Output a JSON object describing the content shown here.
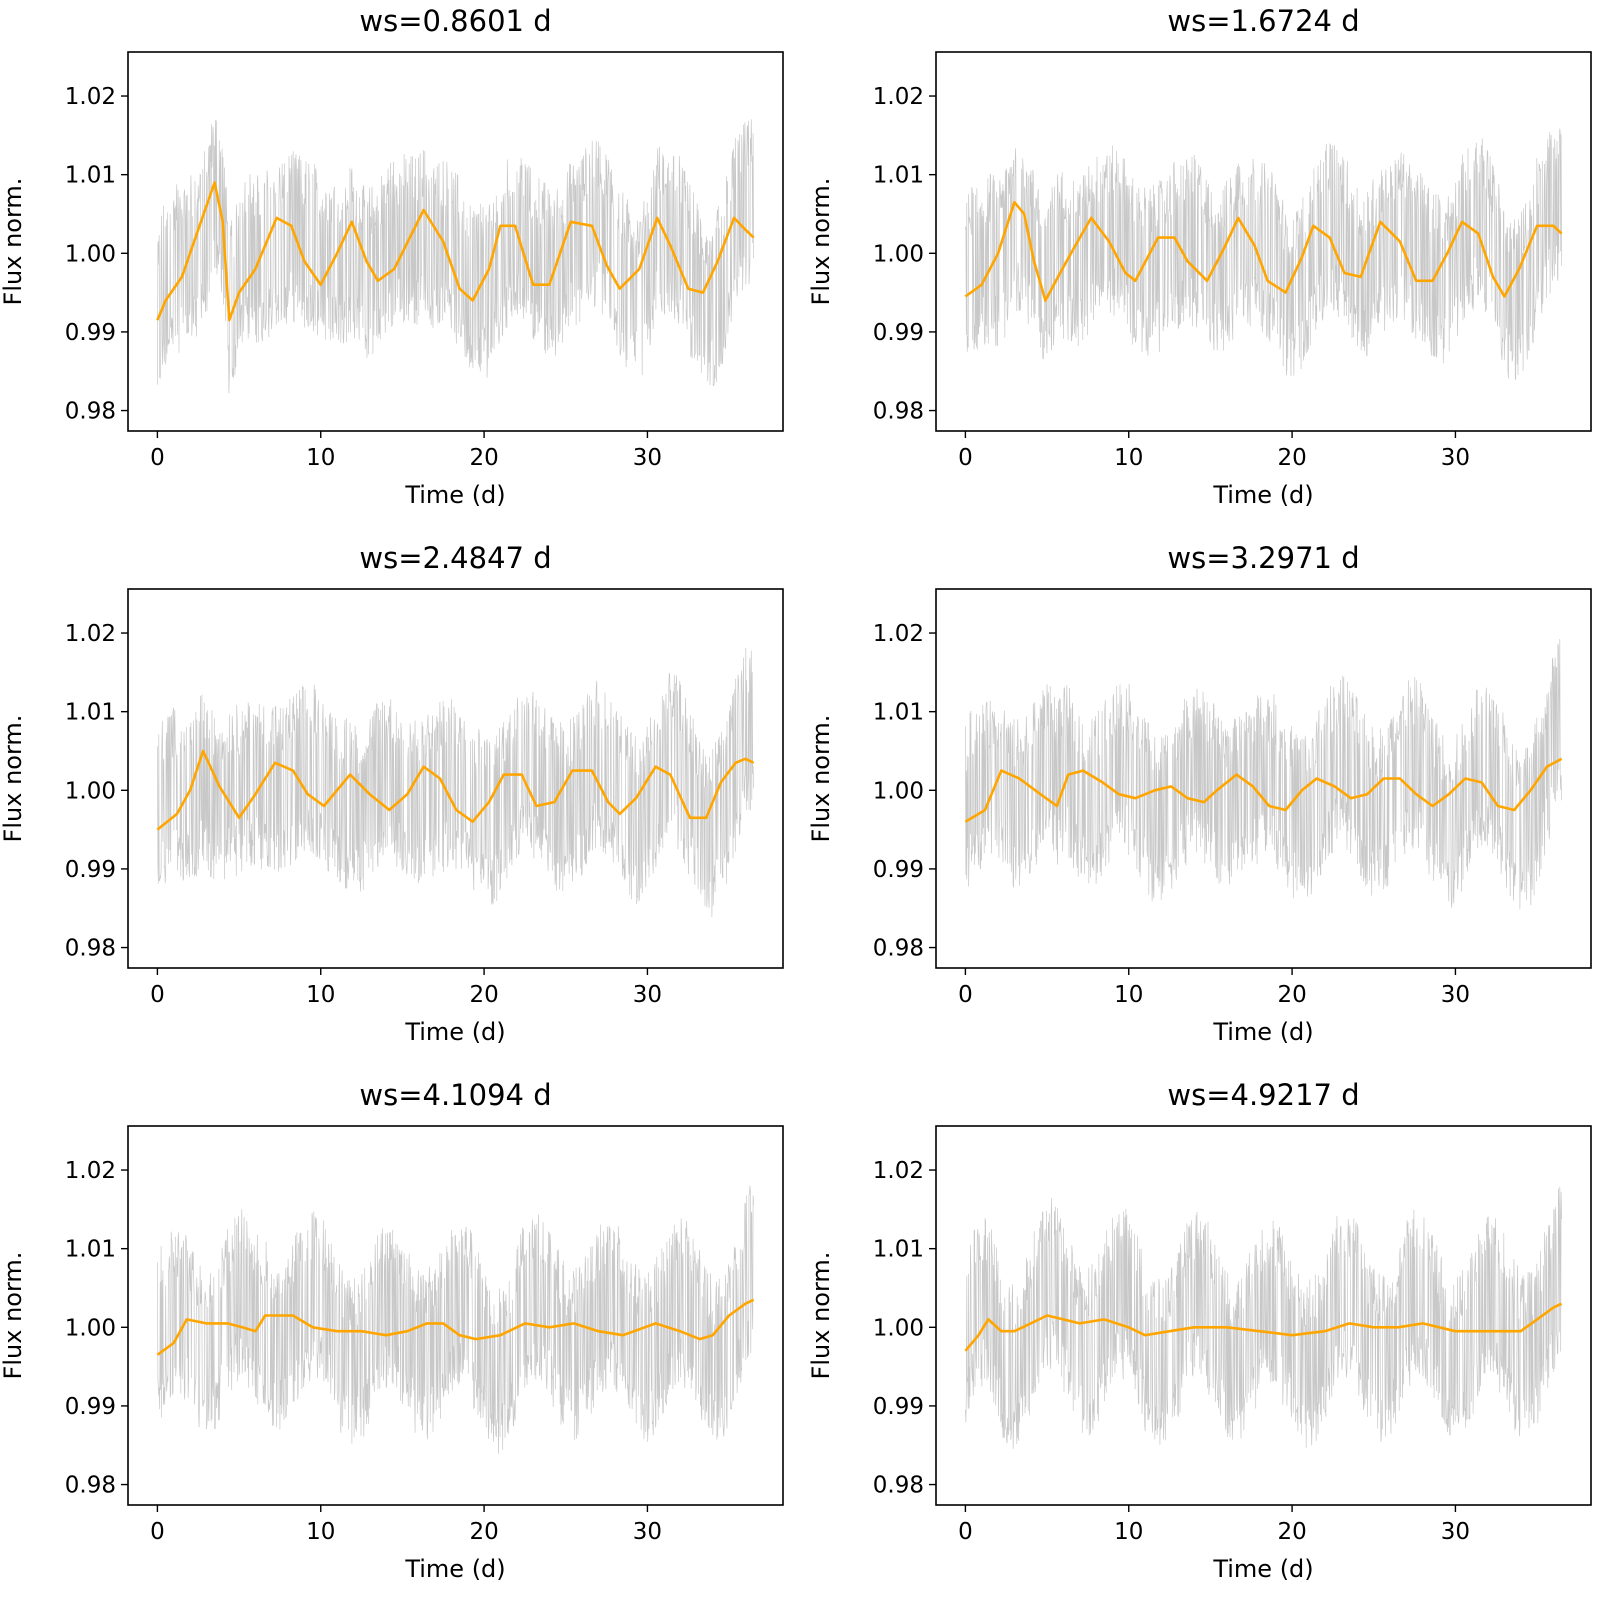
{
  "chart_data": [
    {
      "type": "line",
      "title": "ws=0.8601 d",
      "xlabel": "Time (d)",
      "ylabel": "Flux norm.",
      "xlim": [
        -1.8,
        38.3
      ],
      "ylim": [
        0.9774,
        1.0256
      ],
      "xticks": [
        0,
        10,
        20,
        30
      ],
      "xtick_labels": [
        "0",
        "10",
        "20",
        "30"
      ],
      "yticks": [
        0.98,
        0.99,
        1.0,
        1.01,
        1.02
      ],
      "ytick_labels": [
        "0.98",
        "0.99",
        "1.00",
        "1.01",
        "1.02"
      ],
      "series": [
        {
          "role": "raw",
          "color": "#c8c8c8",
          "x_range": [
            0,
            36.5
          ],
          "envelope": "±0.012 noisy flux about trend"
        },
        {
          "role": "smoothed",
          "color": "#ffa500",
          "x": [
            0,
            0.5,
            1.5,
            2.5,
            3.5,
            4.0,
            4.4,
            5.0,
            6.0,
            7.3,
            8.2,
            9.0,
            10.0,
            11.0,
            11.9,
            12.8,
            13.5,
            14.5,
            16.3,
            17.5,
            18.5,
            19.3,
            20.3,
            21.0,
            21.9,
            23.0,
            24.0,
            25.3,
            26.6,
            27.5,
            28.3,
            29.5,
            30.6,
            31.4,
            32.5,
            33.4,
            34.3,
            35.3,
            36.0,
            36.5
          ],
          "y": [
            0.9915,
            0.994,
            0.997,
            1.003,
            1.009,
            1.004,
            0.9915,
            0.995,
            0.998,
            1.0045,
            1.0035,
            0.999,
            0.996,
            1.0,
            1.004,
            0.999,
            0.9965,
            0.998,
            1.0055,
            1.0015,
            0.9955,
            0.994,
            0.998,
            1.0035,
            1.0035,
            0.996,
            0.996,
            1.004,
            1.0035,
            0.9985,
            0.9955,
            0.998,
            1.0045,
            1.001,
            0.9955,
            0.995,
            0.999,
            1.0045,
            1.003,
            1.002
          ]
        }
      ]
    },
    {
      "type": "line",
      "title": "ws=1.6724 d",
      "xlabel": "Time (d)",
      "ylabel": "Flux norm.",
      "xlim": [
        -1.8,
        38.3
      ],
      "ylim": [
        0.9774,
        1.0256
      ],
      "xticks": [
        0,
        10,
        20,
        30
      ],
      "xtick_labels": [
        "0",
        "10",
        "20",
        "30"
      ],
      "yticks": [
        0.98,
        0.99,
        1.0,
        1.01,
        1.02
      ],
      "ytick_labels": [
        "0.98",
        "0.99",
        "1.00",
        "1.01",
        "1.02"
      ],
      "series": [
        {
          "role": "raw",
          "color": "#c8c8c8",
          "x_range": [
            0,
            36.5
          ],
          "envelope": "±0.012 noisy flux about trend"
        },
        {
          "role": "smoothed",
          "color": "#ffa500",
          "x": [
            0,
            1.0,
            2.0,
            3.0,
            3.6,
            4.2,
            4.9,
            5.8,
            6.6,
            7.7,
            8.8,
            9.8,
            10.4,
            11.8,
            12.8,
            13.6,
            14.8,
            15.8,
            16.7,
            17.7,
            18.5,
            19.6,
            20.6,
            21.3,
            22.3,
            23.2,
            24.2,
            25.4,
            26.6,
            27.6,
            28.6,
            29.5,
            30.4,
            31.4,
            32.3,
            33.0,
            33.9,
            35.0,
            36.0,
            36.5
          ],
          "y": [
            0.9945,
            0.996,
            1.0,
            1.0065,
            1.005,
            0.999,
            0.994,
            0.9975,
            1.0005,
            1.0045,
            1.0015,
            0.9975,
            0.9965,
            1.002,
            1.002,
            0.999,
            0.9965,
            1.0005,
            1.0045,
            1.001,
            0.9965,
            0.995,
            0.9995,
            1.0035,
            1.002,
            0.9975,
            0.997,
            1.004,
            1.0015,
            0.9965,
            0.9965,
            1.0,
            1.004,
            1.0025,
            0.997,
            0.9945,
            0.998,
            1.0035,
            1.0035,
            1.0025
          ]
        }
      ]
    },
    {
      "type": "line",
      "title": "ws=2.4847 d",
      "xlabel": "Time (d)",
      "ylabel": "Flux norm.",
      "xlim": [
        -1.8,
        38.3
      ],
      "ylim": [
        0.9774,
        1.0256
      ],
      "xticks": [
        0,
        10,
        20,
        30
      ],
      "xtick_labels": [
        "0",
        "10",
        "20",
        "30"
      ],
      "yticks": [
        0.98,
        0.99,
        1.0,
        1.01,
        1.02
      ],
      "ytick_labels": [
        "0.98",
        "0.99",
        "1.00",
        "1.01",
        "1.02"
      ],
      "series": [
        {
          "role": "raw",
          "color": "#c8c8c8",
          "x_range": [
            0,
            36.5
          ],
          "envelope": "±0.012 noisy flux about trend"
        },
        {
          "role": "smoothed",
          "color": "#ffa500",
          "x": [
            0,
            1.2,
            2.0,
            2.8,
            3.8,
            5.0,
            6.0,
            7.2,
            8.3,
            9.2,
            10.2,
            11.8,
            13.0,
            14.2,
            15.3,
            16.3,
            17.3,
            18.3,
            19.3,
            20.3,
            21.2,
            22.3,
            23.2,
            24.3,
            25.4,
            26.6,
            27.6,
            28.3,
            29.3,
            30.5,
            31.4,
            32.6,
            33.6,
            34.5,
            35.4,
            36.0,
            36.5
          ],
          "y": [
            0.995,
            0.997,
            1.0,
            1.005,
            1.0005,
            0.9965,
            0.9995,
            1.0035,
            1.0025,
            0.9995,
            0.998,
            1.002,
            0.9995,
            0.9975,
            0.9995,
            1.003,
            1.0015,
            0.9975,
            0.996,
            0.9985,
            1.002,
            1.002,
            0.998,
            0.9985,
            1.0025,
            1.0025,
            0.9985,
            0.997,
            0.999,
            1.003,
            1.002,
            0.9965,
            0.9965,
            1.001,
            1.0035,
            1.004,
            1.0035
          ]
        }
      ]
    },
    {
      "type": "line",
      "title": "ws=3.2971 d",
      "xlabel": "Time (d)",
      "ylabel": "Flux norm.",
      "xlim": [
        -1.8,
        38.3
      ],
      "ylim": [
        0.9774,
        1.0256
      ],
      "xticks": [
        0,
        10,
        20,
        30
      ],
      "xtick_labels": [
        "0",
        "10",
        "20",
        "30"
      ],
      "yticks": [
        0.98,
        0.99,
        1.0,
        1.01,
        1.02
      ],
      "ytick_labels": [
        "0.98",
        "0.99",
        "1.00",
        "1.01",
        "1.02"
      ],
      "series": [
        {
          "role": "raw",
          "color": "#c8c8c8",
          "x_range": [
            0,
            36.5
          ],
          "envelope": "±0.012 noisy flux about trend"
        },
        {
          "role": "smoothed",
          "color": "#ffa500",
          "x": [
            0,
            1.2,
            2.2,
            3.3,
            4.6,
            5.6,
            6.3,
            7.2,
            8.4,
            9.4,
            10.4,
            11.6,
            12.6,
            13.6,
            14.6,
            15.4,
            16.6,
            17.6,
            18.6,
            19.6,
            20.6,
            21.5,
            22.6,
            23.6,
            24.6,
            25.6,
            26.6,
            27.6,
            28.6,
            29.6,
            30.6,
            31.6,
            32.6,
            33.6,
            34.6,
            35.6,
            36.5
          ],
          "y": [
            0.996,
            0.9975,
            1.0025,
            1.0015,
            0.9995,
            0.998,
            1.002,
            1.0025,
            1.001,
            0.9995,
            0.999,
            1.0,
            1.0005,
            0.999,
            0.9985,
            1.0,
            1.002,
            1.0005,
            0.998,
            0.9975,
            1.0,
            1.0015,
            1.0005,
            0.999,
            0.9995,
            1.0015,
            1.0015,
            0.9995,
            0.998,
            0.9995,
            1.0015,
            1.001,
            0.998,
            0.9975,
            1.0,
            1.003,
            1.004
          ]
        }
      ]
    },
    {
      "type": "line",
      "title": "ws=4.1094 d",
      "xlabel": "Time (d)",
      "ylabel": "Flux norm.",
      "xlim": [
        -1.8,
        38.3
      ],
      "ylim": [
        0.9774,
        1.0256
      ],
      "xticks": [
        0,
        10,
        20,
        30
      ],
      "xtick_labels": [
        "0",
        "10",
        "20",
        "30"
      ],
      "yticks": [
        0.98,
        0.99,
        1.0,
        1.01,
        1.02
      ],
      "ytick_labels": [
        "0.98",
        "0.99",
        "1.00",
        "1.01",
        "1.02"
      ],
      "series": [
        {
          "role": "raw",
          "color": "#c8c8c8",
          "x_range": [
            0,
            36.5
          ],
          "envelope": "±0.012 noisy flux about trend"
        },
        {
          "role": "smoothed",
          "color": "#ffa500",
          "x": [
            0,
            1.0,
            1.8,
            3.0,
            4.3,
            5.2,
            6.0,
            6.6,
            7.5,
            8.3,
            9.5,
            11.0,
            12.5,
            14.0,
            15.3,
            16.5,
            17.5,
            18.5,
            19.5,
            21.0,
            22.5,
            24.0,
            25.5,
            27.0,
            28.5,
            30.5,
            32.0,
            33.2,
            34.0,
            35.0,
            36.0,
            36.5
          ],
          "y": [
            0.9965,
            0.998,
            1.001,
            1.0005,
            1.0005,
            1.0,
            0.9995,
            1.0015,
            1.0015,
            1.0015,
            1.0,
            0.9995,
            0.9995,
            0.999,
            0.9995,
            1.0005,
            1.0005,
            0.999,
            0.9985,
            0.999,
            1.0005,
            1.0,
            1.0005,
            0.9995,
            0.999,
            1.0005,
            0.9995,
            0.9985,
            0.999,
            1.0015,
            1.003,
            1.0035
          ]
        }
      ]
    },
    {
      "type": "line",
      "title": "ws=4.9217 d",
      "xlabel": "Time (d)",
      "ylabel": "Flux norm.",
      "xlim": [
        -1.8,
        38.3
      ],
      "ylim": [
        0.9774,
        1.0256
      ],
      "xticks": [
        0,
        10,
        20,
        30
      ],
      "xtick_labels": [
        "0",
        "10",
        "20",
        "30"
      ],
      "yticks": [
        0.98,
        0.99,
        1.0,
        1.01,
        1.02
      ],
      "ytick_labels": [
        "0.98",
        "0.99",
        "1.00",
        "1.01",
        "1.02"
      ],
      "series": [
        {
          "role": "raw",
          "color": "#c8c8c8",
          "x_range": [
            0,
            36.5
          ],
          "envelope": "±0.012 noisy flux about trend"
        },
        {
          "role": "smoothed",
          "color": "#ffa500",
          "x": [
            0,
            0.8,
            1.4,
            2.2,
            3.0,
            4.0,
            5.0,
            6.0,
            7.0,
            8.5,
            10.0,
            11.0,
            12.5,
            14.0,
            16.0,
            18.0,
            20.0,
            22.0,
            23.5,
            25.0,
            26.5,
            28.0,
            30.0,
            32.0,
            34.0,
            35.0,
            36.0,
            36.5
          ],
          "y": [
            0.997,
            0.999,
            1.001,
            0.9995,
            0.9995,
            1.0005,
            1.0015,
            1.001,
            1.0005,
            1.001,
            1.0,
            0.999,
            0.9995,
            1.0,
            1.0,
            0.9995,
            0.999,
            0.9995,
            1.0005,
            1.0,
            1.0,
            1.0005,
            0.9995,
            0.9995,
            0.9995,
            1.001,
            1.0025,
            1.003
          ]
        }
      ]
    }
  ]
}
